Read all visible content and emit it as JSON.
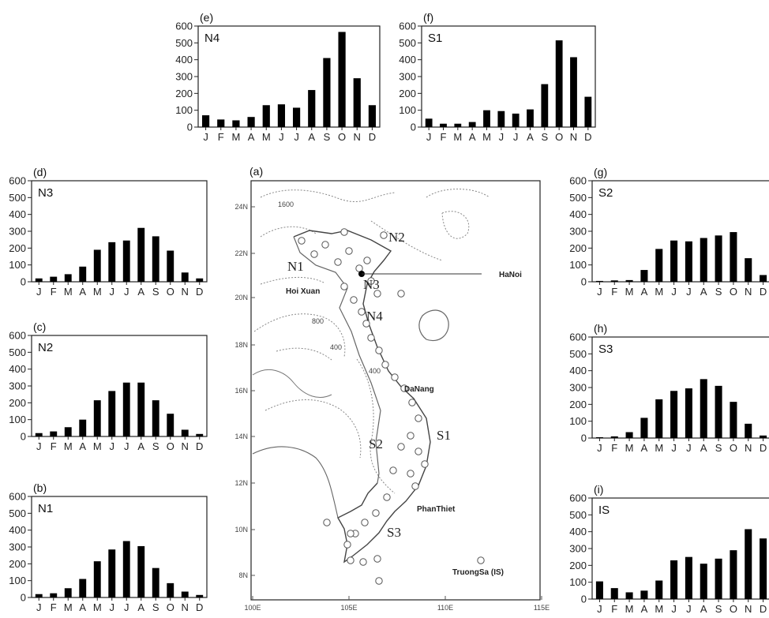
{
  "chart_data": [
    {
      "panel": "(e)",
      "type": "bar",
      "region": "N4",
      "categories": [
        "J",
        "F",
        "M",
        "A",
        "M",
        "J",
        "J",
        "A",
        "S",
        "O",
        "N",
        "D"
      ],
      "values": [
        70,
        45,
        40,
        60,
        130,
        135,
        115,
        220,
        410,
        565,
        290,
        130
      ],
      "ylim": [
        0,
        600
      ],
      "yticks": [
        0,
        100,
        200,
        300,
        400,
        500,
        600
      ]
    },
    {
      "panel": "(f)",
      "type": "bar",
      "region": "S1",
      "categories": [
        "J",
        "F",
        "M",
        "A",
        "M",
        "J",
        "J",
        "A",
        "S",
        "O",
        "N",
        "D"
      ],
      "values": [
        50,
        20,
        20,
        30,
        100,
        95,
        80,
        105,
        255,
        515,
        415,
        180
      ],
      "ylim": [
        0,
        600
      ],
      "yticks": [
        0,
        100,
        200,
        300,
        400,
        500,
        600
      ]
    },
    {
      "panel": "(d)",
      "type": "bar",
      "region": "N3",
      "categories": [
        "J",
        "F",
        "M",
        "A",
        "M",
        "J",
        "J",
        "A",
        "S",
        "O",
        "N",
        "D"
      ],
      "values": [
        20,
        30,
        45,
        90,
        190,
        235,
        245,
        320,
        270,
        185,
        55,
        20
      ],
      "ylim": [
        0,
        600
      ],
      "yticks": [
        0,
        100,
        200,
        300,
        400,
        500,
        600
      ]
    },
    {
      "panel": "(c)",
      "type": "bar",
      "region": "N2",
      "categories": [
        "J",
        "F",
        "M",
        "A",
        "M",
        "J",
        "J",
        "A",
        "S",
        "O",
        "N",
        "D"
      ],
      "values": [
        20,
        30,
        55,
        100,
        215,
        270,
        320,
        320,
        215,
        135,
        40,
        15
      ],
      "ylim": [
        0,
        600
      ],
      "yticks": [
        0,
        100,
        200,
        300,
        400,
        500,
        600
      ]
    },
    {
      "panel": "(b)",
      "type": "bar",
      "region": "N1",
      "categories": [
        "J",
        "F",
        "M",
        "A",
        "M",
        "J",
        "J",
        "A",
        "S",
        "O",
        "N",
        "D"
      ],
      "values": [
        20,
        25,
        55,
        110,
        215,
        285,
        335,
        305,
        175,
        85,
        35,
        15
      ],
      "ylim": [
        0,
        600
      ],
      "yticks": [
        0,
        100,
        200,
        300,
        400,
        500,
        600
      ]
    },
    {
      "panel": "(g)",
      "type": "bar",
      "region": "S2",
      "categories": [
        "J",
        "F",
        "M",
        "A",
        "M",
        "J",
        "J",
        "A",
        "S",
        "O",
        "N",
        "D"
      ],
      "values": [
        5,
        8,
        10,
        70,
        195,
        245,
        240,
        260,
        275,
        295,
        140,
        40
      ],
      "ylim": [
        0,
        600
      ],
      "yticks": [
        0,
        100,
        200,
        300,
        400,
        500,
        600
      ]
    },
    {
      "panel": "(h)",
      "type": "bar",
      "region": "S3",
      "categories": [
        "J",
        "F",
        "M",
        "A",
        "M",
        "J",
        "J",
        "A",
        "S",
        "O",
        "N",
        "D"
      ],
      "values": [
        5,
        10,
        35,
        120,
        230,
        280,
        295,
        350,
        310,
        215,
        85,
        15
      ],
      "ylim": [
        0,
        600
      ],
      "yticks": [
        0,
        100,
        200,
        300,
        400,
        500,
        600
      ]
    },
    {
      "panel": "(i)",
      "type": "bar",
      "region": "IS",
      "categories": [
        "J",
        "F",
        "M",
        "A",
        "M",
        "J",
        "J",
        "A",
        "S",
        "O",
        "N",
        "D"
      ],
      "values": [
        105,
        65,
        40,
        50,
        110,
        230,
        250,
        210,
        240,
        290,
        415,
        360
      ],
      "ylim": [
        0,
        600
      ],
      "yticks": [
        0,
        100,
        200,
        300,
        400,
        500,
        600
      ]
    }
  ],
  "map": {
    "panel": "(a)",
    "lat_labels": [
      "24N",
      "22N",
      "20N",
      "18N",
      "16N",
      "14N",
      "12N",
      "10N",
      "8N"
    ],
    "lon_labels": [
      "100E",
      "105E",
      "110E",
      "115E"
    ],
    "regions": [
      "N1",
      "N2",
      "N3",
      "N4",
      "S1",
      "S2",
      "S3"
    ],
    "cities": [
      "HaNoi",
      "Hoi Xuan",
      "DaNang",
      "PhanThiet",
      "TruongSa (IS)"
    ],
    "contour_labels": [
      "1600",
      "800",
      "400",
      "400"
    ]
  },
  "colors": {
    "bar": "#000000",
    "axis": "#222222",
    "map_line": "#666666"
  }
}
